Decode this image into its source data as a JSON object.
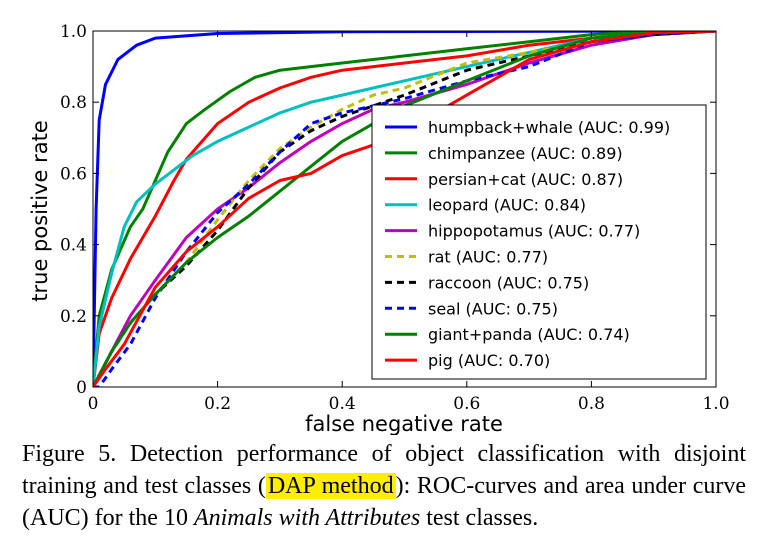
{
  "chart_data": {
    "type": "line",
    "title": "",
    "xlabel": "false negative rate",
    "ylabel": "true positive rate",
    "xlim": [
      0,
      1
    ],
    "ylim": [
      0,
      1
    ],
    "xticks": [
      "0",
      "0.2",
      "0.4",
      "0.6",
      "0.8",
      "1.0"
    ],
    "yticks": [
      "0",
      "0.2",
      "0.4",
      "0.6",
      "0.8",
      "1.0"
    ],
    "legend_position": "lower-right",
    "series": [
      {
        "name": "humpback+whale (AUC: 0.99)",
        "color": "#0000ff",
        "dash": false,
        "points": [
          [
            0,
            0
          ],
          [
            0.005,
            0.5
          ],
          [
            0.01,
            0.75
          ],
          [
            0.02,
            0.85
          ],
          [
            0.04,
            0.92
          ],
          [
            0.07,
            0.96
          ],
          [
            0.1,
            0.98
          ],
          [
            0.2,
            0.993
          ],
          [
            0.4,
            0.998
          ],
          [
            1,
            1
          ]
        ]
      },
      {
        "name": "chimpanzee (AUC: 0.89)",
        "color": "#008000",
        "dash": false,
        "points": [
          [
            0,
            0
          ],
          [
            0.01,
            0.2
          ],
          [
            0.03,
            0.33
          ],
          [
            0.06,
            0.45
          ],
          [
            0.08,
            0.5
          ],
          [
            0.1,
            0.58
          ],
          [
            0.12,
            0.66
          ],
          [
            0.15,
            0.74
          ],
          [
            0.18,
            0.78
          ],
          [
            0.22,
            0.83
          ],
          [
            0.26,
            0.87
          ],
          [
            0.3,
            0.89
          ],
          [
            0.35,
            0.9
          ],
          [
            0.4,
            0.91
          ],
          [
            0.5,
            0.93
          ],
          [
            0.6,
            0.95
          ],
          [
            0.7,
            0.97
          ],
          [
            0.8,
            0.99
          ],
          [
            0.9,
            1.0
          ],
          [
            1,
            1
          ]
        ]
      },
      {
        "name": "persian+cat (AUC: 0.87)",
        "color": "#ff0000",
        "dash": false,
        "points": [
          [
            0,
            0
          ],
          [
            0.01,
            0.15
          ],
          [
            0.03,
            0.25
          ],
          [
            0.06,
            0.36
          ],
          [
            0.1,
            0.48
          ],
          [
            0.13,
            0.58
          ],
          [
            0.15,
            0.64
          ],
          [
            0.2,
            0.74
          ],
          [
            0.25,
            0.8
          ],
          [
            0.3,
            0.84
          ],
          [
            0.35,
            0.87
          ],
          [
            0.4,
            0.89
          ],
          [
            0.5,
            0.91
          ],
          [
            0.6,
            0.93
          ],
          [
            0.7,
            0.96
          ],
          [
            0.8,
            0.98
          ],
          [
            0.9,
            0.995
          ],
          [
            1,
            1
          ]
        ]
      },
      {
        "name": "leopard (AUC: 0.84)",
        "color": "#00bfbf",
        "dash": false,
        "points": [
          [
            0,
            0
          ],
          [
            0.01,
            0.17
          ],
          [
            0.03,
            0.32
          ],
          [
            0.05,
            0.45
          ],
          [
            0.07,
            0.52
          ],
          [
            0.1,
            0.57
          ],
          [
            0.13,
            0.61
          ],
          [
            0.16,
            0.65
          ],
          [
            0.2,
            0.69
          ],
          [
            0.25,
            0.73
          ],
          [
            0.3,
            0.77
          ],
          [
            0.35,
            0.8
          ],
          [
            0.4,
            0.82
          ],
          [
            0.5,
            0.86
          ],
          [
            0.6,
            0.9
          ],
          [
            0.7,
            0.94
          ],
          [
            0.8,
            0.98
          ],
          [
            0.9,
            0.995
          ],
          [
            1,
            1
          ]
        ]
      },
      {
        "name": "hippopotamus (AUC: 0.77)",
        "color": "#bf00bf",
        "dash": false,
        "points": [
          [
            0,
            0
          ],
          [
            0.03,
            0.1
          ],
          [
            0.06,
            0.2
          ],
          [
            0.1,
            0.3
          ],
          [
            0.15,
            0.42
          ],
          [
            0.2,
            0.5
          ],
          [
            0.25,
            0.56
          ],
          [
            0.3,
            0.63
          ],
          [
            0.35,
            0.69
          ],
          [
            0.4,
            0.74
          ],
          [
            0.45,
            0.78
          ],
          [
            0.5,
            0.8
          ],
          [
            0.6,
            0.85
          ],
          [
            0.7,
            0.91
          ],
          [
            0.8,
            0.96
          ],
          [
            0.9,
            0.99
          ],
          [
            1,
            1
          ]
        ]
      },
      {
        "name": "rat (AUC: 0.77)",
        "color": "#bfbf00",
        "dash": true,
        "points": [
          [
            0,
            0
          ],
          [
            0.03,
            0.1
          ],
          [
            0.06,
            0.18
          ],
          [
            0.1,
            0.26
          ],
          [
            0.15,
            0.35
          ],
          [
            0.2,
            0.47
          ],
          [
            0.25,
            0.58
          ],
          [
            0.3,
            0.67
          ],
          [
            0.35,
            0.73
          ],
          [
            0.4,
            0.78
          ],
          [
            0.45,
            0.82
          ],
          [
            0.5,
            0.84
          ],
          [
            0.6,
            0.91
          ],
          [
            0.7,
            0.94
          ],
          [
            0.8,
            0.97
          ],
          [
            0.9,
            0.995
          ],
          [
            1,
            1
          ]
        ]
      },
      {
        "name": "raccoon (AUC: 0.75)",
        "color": "#000000",
        "dash": true,
        "points": [
          [
            0,
            0
          ],
          [
            0.03,
            0.1
          ],
          [
            0.06,
            0.18
          ],
          [
            0.1,
            0.26
          ],
          [
            0.15,
            0.34
          ],
          [
            0.2,
            0.44
          ],
          [
            0.25,
            0.56
          ],
          [
            0.3,
            0.66
          ],
          [
            0.35,
            0.72
          ],
          [
            0.4,
            0.76
          ],
          [
            0.45,
            0.79
          ],
          [
            0.5,
            0.82
          ],
          [
            0.6,
            0.89
          ],
          [
            0.7,
            0.93
          ],
          [
            0.8,
            0.97
          ],
          [
            0.9,
            0.99
          ],
          [
            1,
            1
          ]
        ]
      },
      {
        "name": "seal (AUC: 0.75)",
        "color": "#0000ff",
        "dash": true,
        "points": [
          [
            0,
            0
          ],
          [
            0.01,
            0.0
          ],
          [
            0.03,
            0.05
          ],
          [
            0.06,
            0.12
          ],
          [
            0.1,
            0.25
          ],
          [
            0.15,
            0.38
          ],
          [
            0.2,
            0.49
          ],
          [
            0.25,
            0.57
          ],
          [
            0.3,
            0.66
          ],
          [
            0.35,
            0.74
          ],
          [
            0.4,
            0.77
          ],
          [
            0.45,
            0.79
          ],
          [
            0.5,
            0.81
          ],
          [
            0.6,
            0.86
          ],
          [
            0.7,
            0.9
          ],
          [
            0.8,
            0.97
          ],
          [
            0.9,
            0.99
          ],
          [
            1,
            1
          ]
        ]
      },
      {
        "name": "giant+panda (AUC: 0.74)",
        "color": "#008000",
        "dash": false,
        "points": [
          [
            0,
            0
          ],
          [
            0.03,
            0.1
          ],
          [
            0.06,
            0.18
          ],
          [
            0.1,
            0.26
          ],
          [
            0.15,
            0.35
          ],
          [
            0.2,
            0.42
          ],
          [
            0.25,
            0.48
          ],
          [
            0.3,
            0.55
          ],
          [
            0.35,
            0.62
          ],
          [
            0.4,
            0.69
          ],
          [
            0.45,
            0.74
          ],
          [
            0.5,
            0.79
          ],
          [
            0.6,
            0.86
          ],
          [
            0.7,
            0.93
          ],
          [
            0.8,
            0.98
          ],
          [
            0.9,
            0.995
          ],
          [
            1,
            1
          ]
        ]
      },
      {
        "name": "pig (AUC: 0.70)",
        "color": "#ff0000",
        "dash": false,
        "points": [
          [
            0,
            0
          ],
          [
            0.02,
            0.05
          ],
          [
            0.05,
            0.12
          ],
          [
            0.1,
            0.28
          ],
          [
            0.15,
            0.38
          ],
          [
            0.2,
            0.45
          ],
          [
            0.25,
            0.53
          ],
          [
            0.3,
            0.58
          ],
          [
            0.35,
            0.6
          ],
          [
            0.4,
            0.65
          ],
          [
            0.45,
            0.68
          ],
          [
            0.5,
            0.72
          ],
          [
            0.55,
            0.77
          ],
          [
            0.6,
            0.82
          ],
          [
            0.65,
            0.87
          ],
          [
            0.7,
            0.92
          ],
          [
            0.8,
            0.97
          ],
          [
            0.9,
            0.995
          ],
          [
            1,
            1
          ]
        ]
      }
    ]
  },
  "caption": {
    "part1": "Figure 5. Detection performance of object classification with disjoint training and test classes (",
    "highlight": "DAP method",
    "part2": "): ROC-curves and area under curve (AUC) for the 10 ",
    "italic": "Animals with Attributes",
    "part3": " test classes.",
    "highlight_color": "#ffee00"
  }
}
